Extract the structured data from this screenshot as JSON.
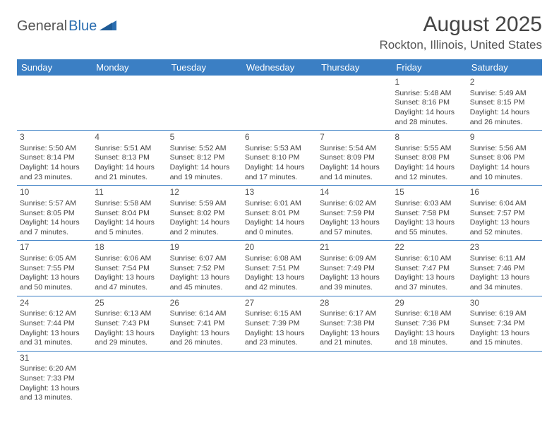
{
  "logo": {
    "part1": "General",
    "part2": "Blue"
  },
  "title": "August 2025",
  "location": "Rockton, Illinois, United States",
  "colors": {
    "header_bg": "#3b7fc4",
    "header_text": "#ffffff",
    "border": "#3b7fc4",
    "text": "#444444",
    "logo_blue": "#2a6db0"
  },
  "weekdays": [
    "Sunday",
    "Monday",
    "Tuesday",
    "Wednesday",
    "Thursday",
    "Friday",
    "Saturday"
  ],
  "weeks": [
    [
      null,
      null,
      null,
      null,
      null,
      {
        "day": "1",
        "sunrise": "Sunrise: 5:48 AM",
        "sunset": "Sunset: 8:16 PM",
        "daylight1": "Daylight: 14 hours",
        "daylight2": "and 28 minutes."
      },
      {
        "day": "2",
        "sunrise": "Sunrise: 5:49 AM",
        "sunset": "Sunset: 8:15 PM",
        "daylight1": "Daylight: 14 hours",
        "daylight2": "and 26 minutes."
      }
    ],
    [
      {
        "day": "3",
        "sunrise": "Sunrise: 5:50 AM",
        "sunset": "Sunset: 8:14 PM",
        "daylight1": "Daylight: 14 hours",
        "daylight2": "and 23 minutes."
      },
      {
        "day": "4",
        "sunrise": "Sunrise: 5:51 AM",
        "sunset": "Sunset: 8:13 PM",
        "daylight1": "Daylight: 14 hours",
        "daylight2": "and 21 minutes."
      },
      {
        "day": "5",
        "sunrise": "Sunrise: 5:52 AM",
        "sunset": "Sunset: 8:12 PM",
        "daylight1": "Daylight: 14 hours",
        "daylight2": "and 19 minutes."
      },
      {
        "day": "6",
        "sunrise": "Sunrise: 5:53 AM",
        "sunset": "Sunset: 8:10 PM",
        "daylight1": "Daylight: 14 hours",
        "daylight2": "and 17 minutes."
      },
      {
        "day": "7",
        "sunrise": "Sunrise: 5:54 AM",
        "sunset": "Sunset: 8:09 PM",
        "daylight1": "Daylight: 14 hours",
        "daylight2": "and 14 minutes."
      },
      {
        "day": "8",
        "sunrise": "Sunrise: 5:55 AM",
        "sunset": "Sunset: 8:08 PM",
        "daylight1": "Daylight: 14 hours",
        "daylight2": "and 12 minutes."
      },
      {
        "day": "9",
        "sunrise": "Sunrise: 5:56 AM",
        "sunset": "Sunset: 8:06 PM",
        "daylight1": "Daylight: 14 hours",
        "daylight2": "and 10 minutes."
      }
    ],
    [
      {
        "day": "10",
        "sunrise": "Sunrise: 5:57 AM",
        "sunset": "Sunset: 8:05 PM",
        "daylight1": "Daylight: 14 hours",
        "daylight2": "and 7 minutes."
      },
      {
        "day": "11",
        "sunrise": "Sunrise: 5:58 AM",
        "sunset": "Sunset: 8:04 PM",
        "daylight1": "Daylight: 14 hours",
        "daylight2": "and 5 minutes."
      },
      {
        "day": "12",
        "sunrise": "Sunrise: 5:59 AM",
        "sunset": "Sunset: 8:02 PM",
        "daylight1": "Daylight: 14 hours",
        "daylight2": "and 2 minutes."
      },
      {
        "day": "13",
        "sunrise": "Sunrise: 6:01 AM",
        "sunset": "Sunset: 8:01 PM",
        "daylight1": "Daylight: 14 hours",
        "daylight2": "and 0 minutes."
      },
      {
        "day": "14",
        "sunrise": "Sunrise: 6:02 AM",
        "sunset": "Sunset: 7:59 PM",
        "daylight1": "Daylight: 13 hours",
        "daylight2": "and 57 minutes."
      },
      {
        "day": "15",
        "sunrise": "Sunrise: 6:03 AM",
        "sunset": "Sunset: 7:58 PM",
        "daylight1": "Daylight: 13 hours",
        "daylight2": "and 55 minutes."
      },
      {
        "day": "16",
        "sunrise": "Sunrise: 6:04 AM",
        "sunset": "Sunset: 7:57 PM",
        "daylight1": "Daylight: 13 hours",
        "daylight2": "and 52 minutes."
      }
    ],
    [
      {
        "day": "17",
        "sunrise": "Sunrise: 6:05 AM",
        "sunset": "Sunset: 7:55 PM",
        "daylight1": "Daylight: 13 hours",
        "daylight2": "and 50 minutes."
      },
      {
        "day": "18",
        "sunrise": "Sunrise: 6:06 AM",
        "sunset": "Sunset: 7:54 PM",
        "daylight1": "Daylight: 13 hours",
        "daylight2": "and 47 minutes."
      },
      {
        "day": "19",
        "sunrise": "Sunrise: 6:07 AM",
        "sunset": "Sunset: 7:52 PM",
        "daylight1": "Daylight: 13 hours",
        "daylight2": "and 45 minutes."
      },
      {
        "day": "20",
        "sunrise": "Sunrise: 6:08 AM",
        "sunset": "Sunset: 7:51 PM",
        "daylight1": "Daylight: 13 hours",
        "daylight2": "and 42 minutes."
      },
      {
        "day": "21",
        "sunrise": "Sunrise: 6:09 AM",
        "sunset": "Sunset: 7:49 PM",
        "daylight1": "Daylight: 13 hours",
        "daylight2": "and 39 minutes."
      },
      {
        "day": "22",
        "sunrise": "Sunrise: 6:10 AM",
        "sunset": "Sunset: 7:47 PM",
        "daylight1": "Daylight: 13 hours",
        "daylight2": "and 37 minutes."
      },
      {
        "day": "23",
        "sunrise": "Sunrise: 6:11 AM",
        "sunset": "Sunset: 7:46 PM",
        "daylight1": "Daylight: 13 hours",
        "daylight2": "and 34 minutes."
      }
    ],
    [
      {
        "day": "24",
        "sunrise": "Sunrise: 6:12 AM",
        "sunset": "Sunset: 7:44 PM",
        "daylight1": "Daylight: 13 hours",
        "daylight2": "and 31 minutes."
      },
      {
        "day": "25",
        "sunrise": "Sunrise: 6:13 AM",
        "sunset": "Sunset: 7:43 PM",
        "daylight1": "Daylight: 13 hours",
        "daylight2": "and 29 minutes."
      },
      {
        "day": "26",
        "sunrise": "Sunrise: 6:14 AM",
        "sunset": "Sunset: 7:41 PM",
        "daylight1": "Daylight: 13 hours",
        "daylight2": "and 26 minutes."
      },
      {
        "day": "27",
        "sunrise": "Sunrise: 6:15 AM",
        "sunset": "Sunset: 7:39 PM",
        "daylight1": "Daylight: 13 hours",
        "daylight2": "and 23 minutes."
      },
      {
        "day": "28",
        "sunrise": "Sunrise: 6:17 AM",
        "sunset": "Sunset: 7:38 PM",
        "daylight1": "Daylight: 13 hours",
        "daylight2": "and 21 minutes."
      },
      {
        "day": "29",
        "sunrise": "Sunrise: 6:18 AM",
        "sunset": "Sunset: 7:36 PM",
        "daylight1": "Daylight: 13 hours",
        "daylight2": "and 18 minutes."
      },
      {
        "day": "30",
        "sunrise": "Sunrise: 6:19 AM",
        "sunset": "Sunset: 7:34 PM",
        "daylight1": "Daylight: 13 hours",
        "daylight2": "and 15 minutes."
      }
    ],
    [
      {
        "day": "31",
        "sunrise": "Sunrise: 6:20 AM",
        "sunset": "Sunset: 7:33 PM",
        "daylight1": "Daylight: 13 hours",
        "daylight2": "and 13 minutes."
      },
      null,
      null,
      null,
      null,
      null,
      null
    ]
  ]
}
